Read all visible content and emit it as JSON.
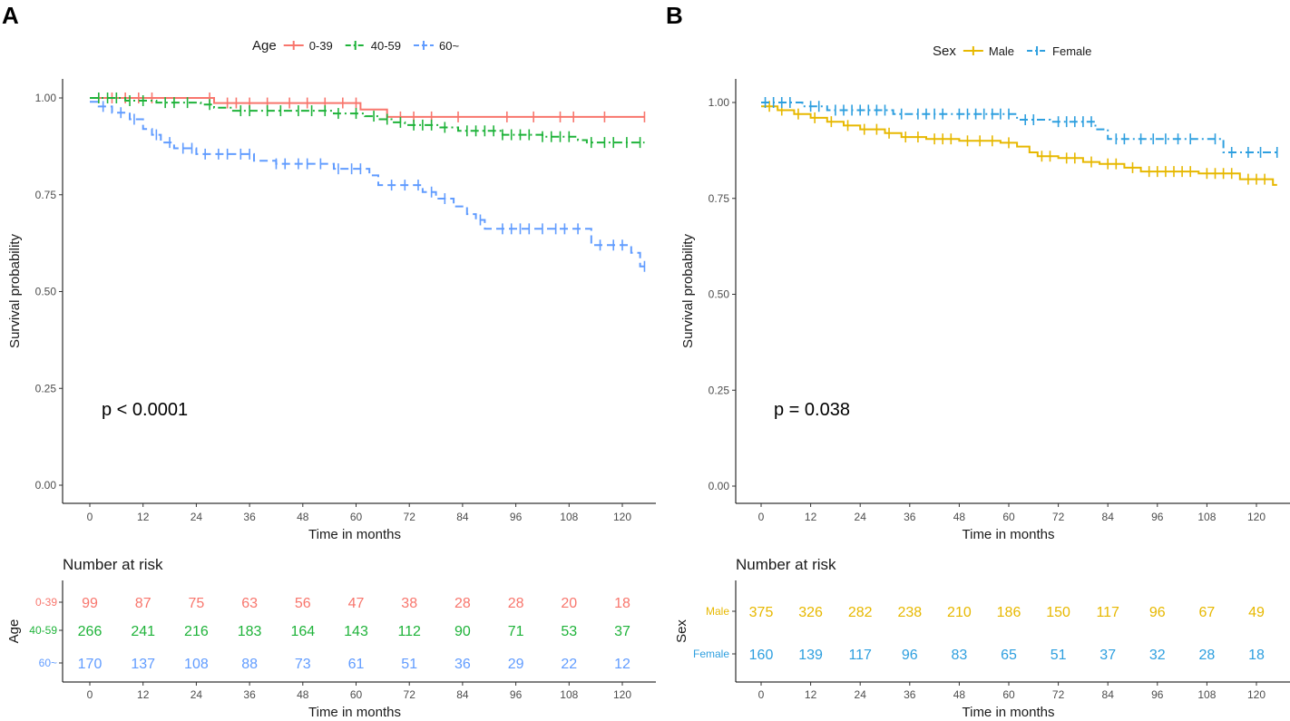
{
  "colors": {
    "red": "#F8766D",
    "green": "#1FB33A",
    "blue": "#619CFF",
    "gold": "#E7B800",
    "cyan": "#2E9FDF"
  },
  "chart_data": [
    {
      "panel": "A",
      "type": "line",
      "subtype": "kaplan-meier",
      "title": "",
      "xlabel": "Time in months",
      "ylabel": "Survival probability",
      "xlim": [
        -5,
        125
      ],
      "ylim": [
        0,
        1
      ],
      "x_ticks": [
        "0",
        "12",
        "24",
        "36",
        "48",
        "60",
        "72",
        "84",
        "96",
        "108",
        "120"
      ],
      "y_ticks": [
        "0.00",
        "0.25",
        "0.50",
        "0.75",
        "1.00"
      ],
      "legend_title": "Age",
      "legend_position": "top",
      "p_value": "p < 0.0001",
      "series": [
        {
          "name": "0-39",
          "color": "#F8766D",
          "dash": "solid",
          "steps": [
            [
              0,
              1.0
            ],
            [
              28,
              0.987
            ],
            [
              61,
              0.97
            ],
            [
              67,
              0.951
            ]
          ],
          "censor_times": [
            2,
            5,
            8,
            11,
            14,
            27,
            31,
            33,
            36,
            40,
            45,
            49,
            53,
            57,
            60,
            67,
            70,
            73,
            77,
            83,
            94,
            100,
            106,
            109,
            116,
            125
          ]
        },
        {
          "name": "40-59",
          "color": "#1FB33A",
          "dash": "dash-dot",
          "steps": [
            [
              0,
              1.0
            ],
            [
              8,
              0.993
            ],
            [
              15,
              0.988
            ],
            [
              25,
              0.983
            ],
            [
              28,
              0.975
            ],
            [
              32,
              0.967
            ],
            [
              55,
              0.96
            ],
            [
              62,
              0.953
            ],
            [
              65,
              0.945
            ],
            [
              68,
              0.937
            ],
            [
              71,
              0.93
            ],
            [
              79,
              0.924
            ],
            [
              83,
              0.915
            ],
            [
              93,
              0.905
            ],
            [
              102,
              0.9
            ],
            [
              110,
              0.891
            ],
            [
              112,
              0.885
            ]
          ],
          "censor_times": [
            2,
            4,
            6,
            9,
            12,
            17,
            19,
            22,
            27,
            34,
            36,
            40,
            43,
            47,
            50,
            53,
            56,
            60,
            64,
            67,
            70,
            73,
            75,
            77,
            80,
            85,
            87,
            89,
            91,
            93,
            95,
            97,
            99,
            102,
            104,
            106,
            108,
            113,
            116,
            118,
            121,
            124
          ]
        },
        {
          "name": "60~",
          "color": "#619CFF",
          "dash": "dashed",
          "steps": [
            [
              0,
              0.99
            ],
            [
              2,
              0.978
            ],
            [
              5,
              0.962
            ],
            [
              9,
              0.945
            ],
            [
              12,
              0.92
            ],
            [
              14,
              0.905
            ],
            [
              16,
              0.885
            ],
            [
              19,
              0.87
            ],
            [
              24,
              0.855
            ],
            [
              37,
              0.838
            ],
            [
              42,
              0.83
            ],
            [
              55,
              0.817
            ],
            [
              63,
              0.8
            ],
            [
              65,
              0.775
            ],
            [
              75,
              0.757
            ],
            [
              78,
              0.74
            ],
            [
              82,
              0.72
            ],
            [
              85,
              0.7
            ],
            [
              87,
              0.685
            ],
            [
              89,
              0.662
            ],
            [
              113,
              0.62
            ],
            [
              122,
              0.6
            ],
            [
              124,
              0.565
            ]
          ],
          "censor_times": [
            3,
            7,
            10,
            15,
            18,
            21,
            23,
            26,
            29,
            31,
            34,
            36,
            42,
            44,
            47,
            49,
            52,
            56,
            59,
            61,
            68,
            71,
            74,
            77,
            80,
            88,
            93,
            95,
            97,
            99,
            102,
            105,
            107,
            110,
            115,
            118,
            120,
            125
          ]
        }
      ],
      "risk_table": {
        "title": "Number at risk",
        "strata_title": "Age",
        "xlabel": "Time in months",
        "times": [
          "0",
          "12",
          "24",
          "36",
          "48",
          "60",
          "72",
          "84",
          "96",
          "108",
          "120"
        ],
        "rows": [
          {
            "label": "0-39",
            "color": "#F8766D",
            "values": [
              "99",
              "87",
              "75",
              "63",
              "56",
              "47",
              "38",
              "28",
              "28",
              "20",
              "18"
            ]
          },
          {
            "label": "40-59",
            "color": "#1FB33A",
            "values": [
              "266",
              "241",
              "216",
              "183",
              "164",
              "143",
              "112",
              "90",
              "71",
              "53",
              "37"
            ]
          },
          {
            "label": "60~",
            "color": "#619CFF",
            "values": [
              "170",
              "137",
              "108",
              "88",
              "73",
              "61",
              "51",
              "36",
              "29",
              "22",
              "12"
            ]
          }
        ]
      }
    },
    {
      "panel": "B",
      "type": "line",
      "subtype": "kaplan-meier",
      "title": "",
      "xlabel": "Time in months",
      "ylabel": "Survival probability",
      "xlim": [
        -5,
        125
      ],
      "ylim": [
        0,
        1
      ],
      "x_ticks": [
        "0",
        "12",
        "24",
        "36",
        "48",
        "60",
        "72",
        "84",
        "96",
        "108",
        "120"
      ],
      "y_ticks": [
        "0.00",
        "0.25",
        "0.50",
        "0.75",
        "1.00"
      ],
      "legend_title": "Sex",
      "legend_position": "top",
      "p_value": "p = 0.038",
      "series": [
        {
          "name": "Male",
          "color": "#E7B800",
          "dash": "solid",
          "steps": [
            [
              0,
              0.99
            ],
            [
              4,
              0.98
            ],
            [
              8,
              0.97
            ],
            [
              12,
              0.96
            ],
            [
              16,
              0.95
            ],
            [
              20,
              0.94
            ],
            [
              24,
              0.93
            ],
            [
              30,
              0.92
            ],
            [
              34,
              0.91
            ],
            [
              40,
              0.905
            ],
            [
              48,
              0.9
            ],
            [
              58,
              0.895
            ],
            [
              62,
              0.885
            ],
            [
              65,
              0.87
            ],
            [
              67,
              0.86
            ],
            [
              72,
              0.855
            ],
            [
              78,
              0.845
            ],
            [
              82,
              0.84
            ],
            [
              88,
              0.83
            ],
            [
              92,
              0.82
            ],
            [
              106,
              0.815
            ],
            [
              116,
              0.8
            ],
            [
              124,
              0.785
            ]
          ],
          "censor_times": [
            2,
            5,
            9,
            13,
            17,
            21,
            25,
            28,
            31,
            35,
            38,
            42,
            44,
            46,
            50,
            53,
            56,
            60,
            68,
            70,
            74,
            76,
            80,
            84,
            86,
            90,
            94,
            96,
            98,
            100,
            102,
            104,
            108,
            110,
            112,
            114,
            118,
            120,
            122
          ]
        },
        {
          "name": "Female",
          "color": "#2E9FDF",
          "dash": "dash-dot",
          "steps": [
            [
              0,
              1.0
            ],
            [
              10,
              0.99
            ],
            [
              16,
              0.98
            ],
            [
              32,
              0.97
            ],
            [
              62,
              0.955
            ],
            [
              70,
              0.95
            ],
            [
              81,
              0.93
            ],
            [
              84,
              0.905
            ],
            [
              112,
              0.87
            ]
          ],
          "censor_times": [
            1,
            3,
            5,
            7,
            12,
            14,
            18,
            20,
            22,
            24,
            26,
            28,
            30,
            34,
            38,
            40,
            42,
            44,
            48,
            50,
            52,
            54,
            56,
            58,
            60,
            64,
            66,
            72,
            74,
            76,
            78,
            80,
            86,
            88,
            92,
            95,
            98,
            101,
            104,
            110,
            114,
            118,
            121,
            125
          ]
        }
      ],
      "risk_table": {
        "title": "Number at risk",
        "strata_title": "Sex",
        "xlabel": "Time in months",
        "times": [
          "0",
          "12",
          "24",
          "36",
          "48",
          "60",
          "72",
          "84",
          "96",
          "108",
          "120"
        ],
        "rows": [
          {
            "label": "Male",
            "color": "#E7B800",
            "values": [
              "375",
              "326",
              "282",
              "238",
              "210",
              "186",
              "150",
              "117",
              "96",
              "67",
              "49"
            ]
          },
          {
            "label": "Female",
            "color": "#2E9FDF",
            "values": [
              "160",
              "139",
              "117",
              "96",
              "83",
              "65",
              "51",
              "37",
              "32",
              "28",
              "18"
            ]
          }
        ]
      }
    }
  ]
}
